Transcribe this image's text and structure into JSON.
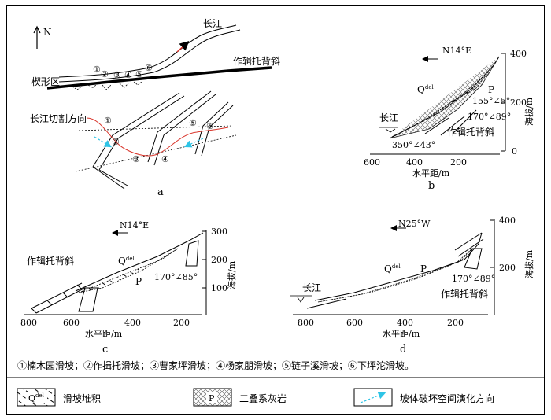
{
  "panel_a": {
    "label": "a",
    "north": "N",
    "river": "长江",
    "anticline": "作辑托背斜",
    "wedge_zone": "楔形区",
    "cut_direction": "长江切割方向",
    "slide_numbers": [
      "①",
      "②",
      "③",
      "④",
      "⑤",
      "⑥"
    ]
  },
  "panel_b": {
    "label": "b",
    "direction": "N14°E",
    "yaxis_label": "海拔/m",
    "xaxis_label": "水平距/m",
    "y_ticks": [
      "400",
      "200",
      "0"
    ],
    "x_ticks": [
      "600",
      "400",
      "200"
    ],
    "qdel_main": "Q",
    "qdel_sup": "del",
    "rock_label": "P",
    "attitude1": "155°∠5°",
    "attitude2": "170°∠89°",
    "attitude3": "350°∠43°",
    "river": "长江",
    "anticline": "作辑托背斜"
  },
  "panel_c": {
    "label": "c",
    "direction": "N14°E",
    "yaxis_label": "海拔/m",
    "xaxis_label": "水平距/m",
    "y_ticks": [
      "300",
      "200",
      "100"
    ],
    "x_ticks": [
      "800",
      "600",
      "400",
      "200"
    ],
    "qdel_main": "Q",
    "qdel_sup": "del",
    "rock_label": "P",
    "attitude": "170°∠85°",
    "anticline": "作辑托背斜"
  },
  "panel_d": {
    "label": "d",
    "direction": "N25°W",
    "yaxis_label": "海拔/m",
    "xaxis_label": "水平距/m",
    "y_ticks": [
      "400",
      "200"
    ],
    "x_ticks": [
      "800",
      "600",
      "400",
      "200"
    ],
    "qdel_main": "Q",
    "qdel_sup": "del",
    "rock_label": "P",
    "attitude": "170°∠89°",
    "river": "长江",
    "anticline": "作辑托背斜"
  },
  "caption": "①楠木园滑坡；②作揖托滑坡；③曹家坪滑坡；④杨家朋滑坡；⑤链子溪滑坡；⑥下坪沱滑坡。",
  "legend": {
    "item1_symbol_main": "Q",
    "item1_symbol_sup": "del",
    "item1_label": "滑坡堆积",
    "item2_symbol": "P",
    "item2_label": "二叠系灰岩",
    "item3_label": "坡体破坏空间演化方向"
  },
  "colors": {
    "arrow_cyan": "#2ec4e6",
    "red_line": "#d9352b"
  }
}
